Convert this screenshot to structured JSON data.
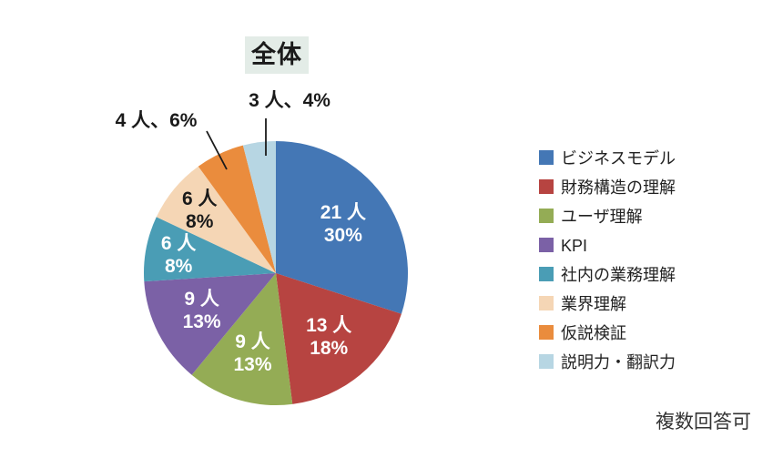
{
  "chart_data": {
    "type": "pie",
    "title": "全体",
    "note": "複数回答可",
    "legend_position": "right",
    "start_angle_deg": 0,
    "direction": "clockwise",
    "segments": [
      {
        "label": "ビジネスモデル",
        "count": 21,
        "percent": 30,
        "color": "#4477b5",
        "data_label": [
          "21 人",
          "30%"
        ],
        "label_placement": "inside",
        "label_color": "#ffffff"
      },
      {
        "label": "財務構造の理解",
        "count": 13,
        "percent": 18,
        "color": "#b74441",
        "data_label": [
          "13 人",
          "18%"
        ],
        "label_placement": "inside",
        "label_color": "#ffffff"
      },
      {
        "label": "ユーザ理解",
        "count": 9,
        "percent": 13,
        "color": "#94ac55",
        "data_label": [
          "9 人",
          "13%"
        ],
        "label_placement": "inside",
        "label_color": "#ffffff"
      },
      {
        "label": "KPI",
        "count": 9,
        "percent": 13,
        "color": "#7b61a6",
        "data_label": [
          "9 人",
          "13%"
        ],
        "label_placement": "inside",
        "label_color": "#ffffff"
      },
      {
        "label": "社内の業務理解",
        "count": 6,
        "percent": 8,
        "color": "#4a9db5",
        "data_label": [
          "6 人",
          "8%"
        ],
        "label_placement": "inside",
        "label_color": "#ffffff"
      },
      {
        "label": "業界理解",
        "count": 6,
        "percent": 8,
        "color": "#f5d6b5",
        "data_label": [
          "6 人",
          "8%"
        ],
        "label_placement": "inside",
        "label_color": "#1a1a1a"
      },
      {
        "label": "仮説検証",
        "count": 4,
        "percent": 6,
        "color": "#ea8c3d",
        "data_label": [
          "4 人、6%"
        ],
        "label_placement": "outside",
        "label_color": "#1a1a1a"
      },
      {
        "label": "説明力・翻訳力",
        "count": 3,
        "percent": 4,
        "color": "#b7d6e3",
        "data_label": [
          "3 人、4%"
        ],
        "label_placement": "outside",
        "label_color": "#1a1a1a"
      }
    ]
  }
}
